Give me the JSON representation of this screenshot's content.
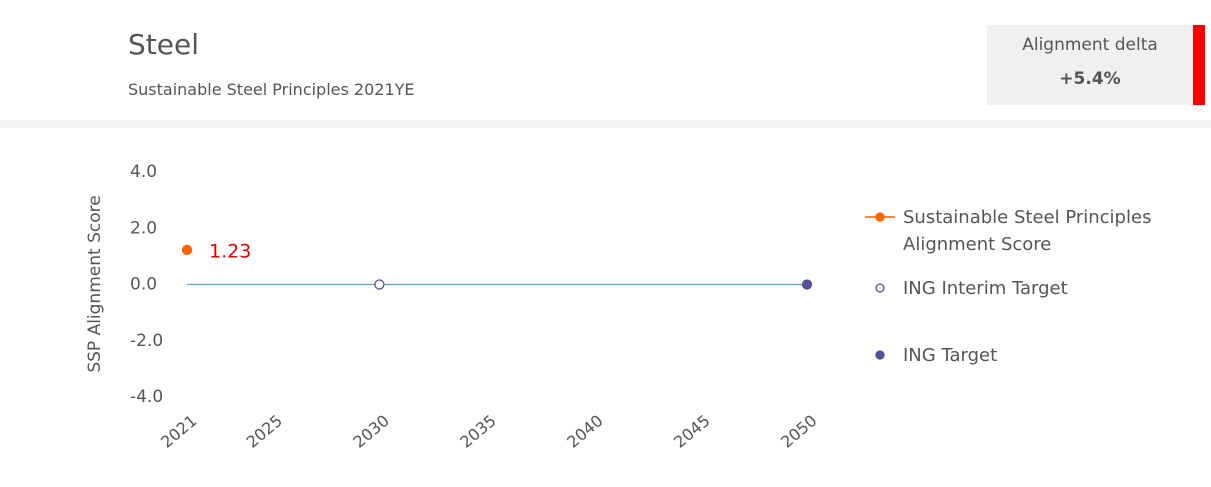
{
  "header": {
    "title": "Steel",
    "subtitle": "Sustainable Steel Principles 2021YE",
    "delta_label": "Alignment delta",
    "delta_value": "+5.4%",
    "delta_color": "#ff0000"
  },
  "chart_data": {
    "type": "scatter",
    "ylabel": "SSP Alignment Score",
    "xlim": [
      2021,
      2050
    ],
    "xticks": [
      2021,
      2025,
      2030,
      2035,
      2040,
      2045,
      2050
    ],
    "ylim": [
      -4,
      4
    ],
    "yticks": [
      {
        "value": 4,
        "label": "4.0"
      },
      {
        "value": 2,
        "label": "2.0"
      },
      {
        "value": 0,
        "label": "0.0"
      },
      {
        "value": -2,
        "label": "-2.0"
      },
      {
        "value": -4,
        "label": "-4.0"
      }
    ],
    "path": {
      "color": "#5ba6c4",
      "x": [
        2021,
        2050
      ],
      "values": [
        0,
        0
      ]
    },
    "value_label_color": "#e60000",
    "series": [
      {
        "name": "Sustainable Steel Principles Alignment Score",
        "color": "#ff6200",
        "marker": "filled",
        "legend_line": true,
        "x": [
          2021
        ],
        "values": [
          1.23
        ],
        "show_value": true
      },
      {
        "name": "ING Interim Target",
        "color": "#525199",
        "marker": "hollow",
        "x": [
          2030
        ],
        "values": [
          0
        ]
      },
      {
        "name": "ING Target",
        "color": "#525199",
        "marker": "filled",
        "x": [
          2050
        ],
        "values": [
          0
        ]
      }
    ]
  }
}
